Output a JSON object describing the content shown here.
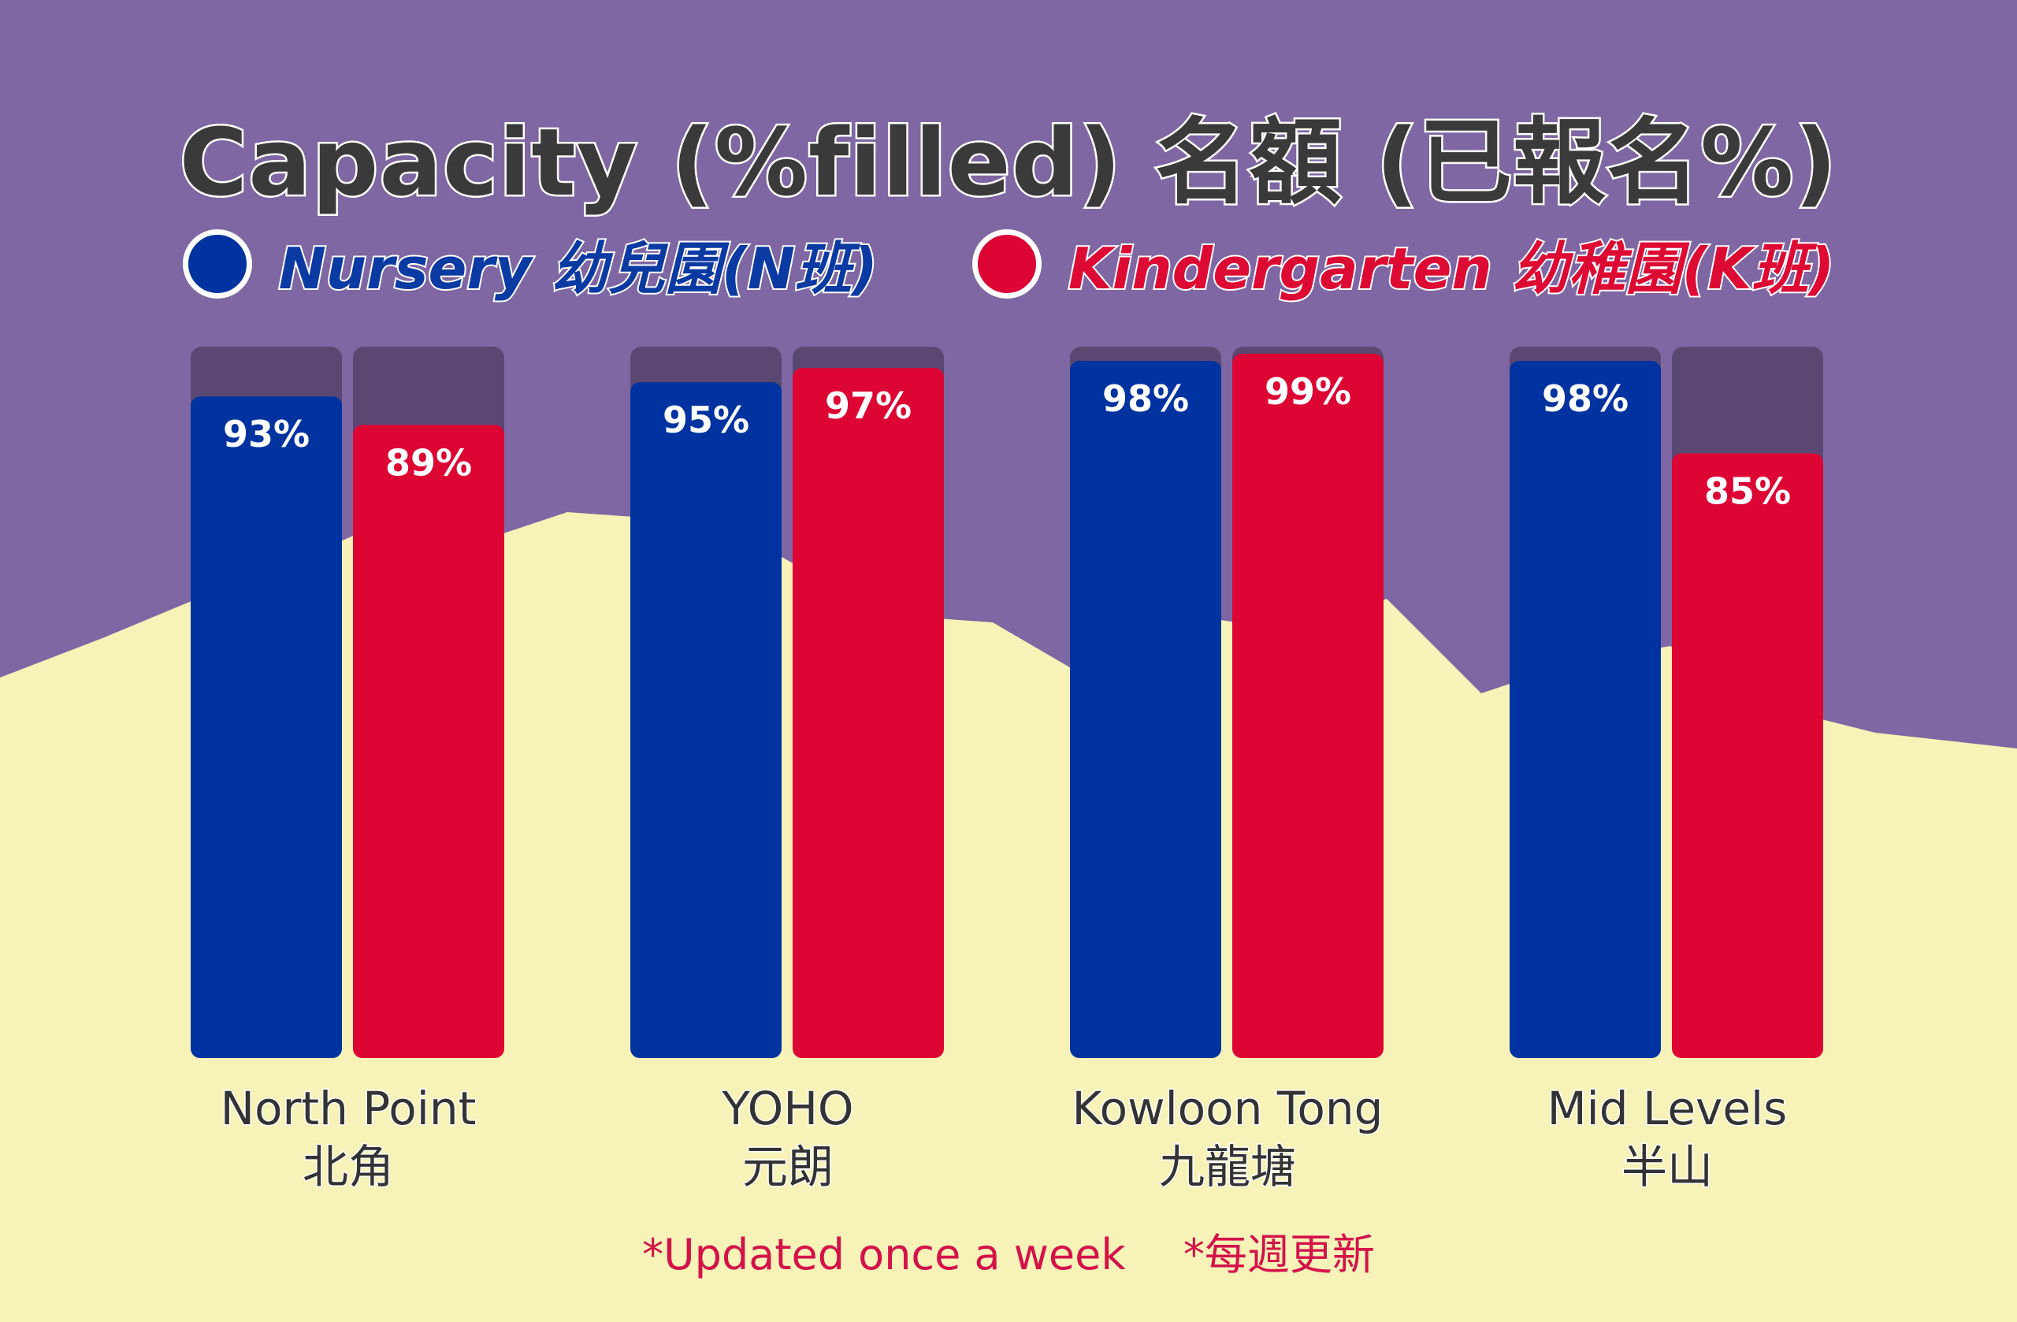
{
  "colors": {
    "nursery": "#0033a0",
    "kindergarten": "#dc0533",
    "track": "#5a4872",
    "purple_bg": "#7e67a2",
    "yellow_bg": "#f6f2b8"
  },
  "chart_data": {
    "type": "bar",
    "title": "Capacity (%filled)  名額 (已報名%)",
    "categories": [
      "North Point",
      "YOHO",
      "Kowloon Tong",
      "Mid Levels"
    ],
    "categories_zh": [
      "北角",
      "元朗",
      "九龍塘",
      "半山"
    ],
    "series": [
      {
        "name": "Nursery 幼兒園(N班)",
        "values": [
          93,
          95,
          98,
          98
        ]
      },
      {
        "name": "Kindergarten 幼稚園(K班)",
        "values": [
          89,
          97,
          99,
          85
        ]
      }
    ],
    "value_labels": [
      [
        "93%",
        "95%",
        "98%",
        "98%"
      ],
      [
        "89%",
        "97%",
        "99%",
        "85%"
      ]
    ],
    "ylim": [
      0,
      100
    ],
    "grid": false,
    "legend": "top-center"
  },
  "footnote": {
    "en": "*Updated once a week",
    "zh": "*每週更新"
  }
}
